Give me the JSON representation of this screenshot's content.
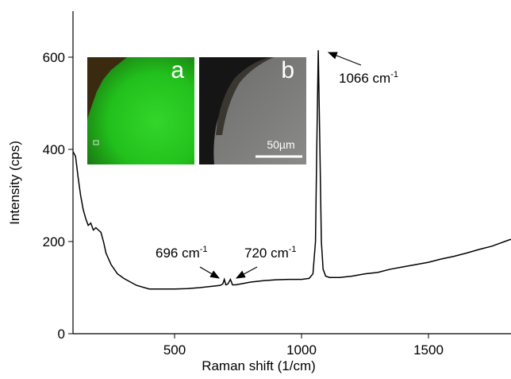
{
  "chart_data": {
    "type": "line",
    "x_label": "Raman shift (1/cm)",
    "y_label": "Intensity (cps)",
    "x": [
      100,
      110,
      120,
      130,
      140,
      150,
      160,
      170,
      180,
      190,
      200,
      210,
      220,
      230,
      250,
      275,
      300,
      350,
      400,
      450,
      500,
      550,
      600,
      650,
      680,
      690,
      696,
      702,
      710,
      720,
      728,
      740,
      760,
      800,
      850,
      900,
      950,
      1000,
      1030,
      1045,
      1055,
      1060,
      1066,
      1072,
      1078,
      1085,
      1095,
      1110,
      1150,
      1200,
      1250,
      1300,
      1350,
      1400,
      1450,
      1500,
      1550,
      1600,
      1650,
      1700,
      1750,
      1800,
      1825
    ],
    "series": [
      {
        "color": "#000000",
        "values": [
          395,
          385,
          340,
          300,
          270,
          250,
          235,
          240,
          225,
          230,
          225,
          220,
          200,
          175,
          150,
          130,
          120,
          105,
          97,
          97,
          97,
          98,
          100,
          103,
          105,
          108,
          118,
          106,
          108,
          118,
          106,
          106,
          108,
          112,
          115,
          117,
          118,
          118,
          120,
          130,
          200,
          400,
          615,
          420,
          200,
          140,
          125,
          122,
          122,
          125,
          130,
          133,
          140,
          145,
          150,
          155,
          162,
          168,
          175,
          183,
          190,
          200,
          205
        ]
      }
    ],
    "xlim": [
      100,
      1825
    ],
    "ylim": [
      0,
      700
    ],
    "xticks": [
      500,
      1000,
      1500
    ],
    "yticks": [
      0,
      200,
      400,
      600
    ],
    "annotations": [
      {
        "text": "696 cm",
        "sup": "-1"
      },
      {
        "text": "720 cm",
        "sup": "-1"
      },
      {
        "text": "1066 cm",
        "sup": "-1"
      }
    ],
    "insets": [
      {
        "label": "a"
      },
      {
        "label": "b",
        "scale_bar": "50µm"
      }
    ]
  }
}
